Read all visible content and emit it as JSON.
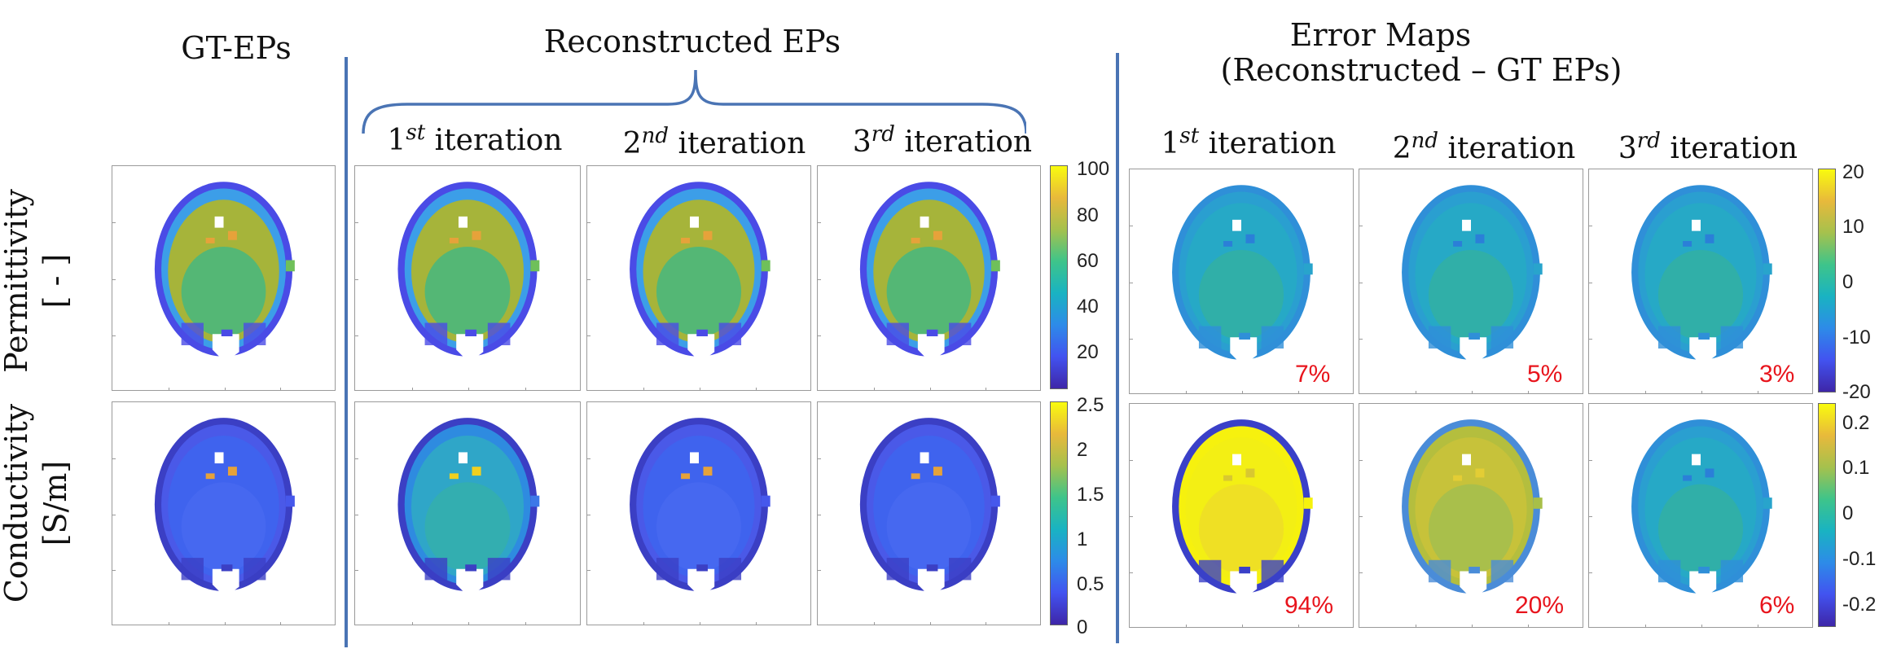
{
  "headers": {
    "gt": "GT-EPs",
    "recon": "Reconstructed EPs",
    "error_line1": "Error Maps",
    "error_line2": "(Reconstructed – GT EPs)"
  },
  "iterations": [
    {
      "num": "1",
      "sup": "st",
      "word": "iteration"
    },
    {
      "num": "2",
      "sup": "nd",
      "word": "iteration"
    },
    {
      "num": "3",
      "sup": "rd",
      "word": "iteration"
    }
  ],
  "rows": {
    "permittivity": {
      "line1": "Permittivity",
      "line2": "[ - ]"
    },
    "conductivity": {
      "line1": "Conductivity",
      "line2": "[S/m]"
    }
  },
  "colorbars": {
    "permittivity_ticks": [
      "100",
      "80",
      "60",
      "40",
      "20"
    ],
    "conductivity_ticks": [
      "2.5",
      "2",
      "1.5",
      "1",
      "0.5",
      "0"
    ],
    "perm_error_ticks": [
      "20",
      "10",
      "0",
      "-10",
      "-20"
    ],
    "cond_error_ticks": [
      "0.2",
      "0.1",
      "0",
      "-0.1",
      "-0.2"
    ]
  },
  "error_percent": {
    "permittivity": [
      "7%",
      "5%",
      "3%"
    ],
    "conductivity": [
      "94%",
      "20%",
      "6%"
    ]
  },
  "colors": {
    "divider": "#4a74b4",
    "percent_text": "#e8141c"
  }
}
